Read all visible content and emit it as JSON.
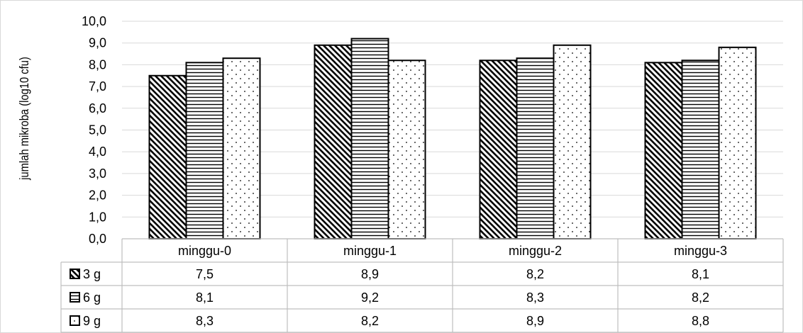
{
  "chart_data": {
    "type": "bar",
    "ylabel": "jumlah mikroba (log10 cfu)",
    "ylim": [
      0,
      10
    ],
    "y_ticks": [
      "0,0",
      "1,0",
      "2,0",
      "3,0",
      "4,0",
      "5,0",
      "6,0",
      "7,0",
      "8,0",
      "9,0",
      "10,0"
    ],
    "grid": true,
    "categories": [
      "minggu-0",
      "minggu-1",
      "minggu-2",
      "minggu-3"
    ],
    "series": [
      {
        "name": "3 g",
        "pattern": "diagonal",
        "values": [
          7.5,
          8.9,
          8.2,
          8.1
        ],
        "labels": [
          "7,5",
          "8,9",
          "8,2",
          "8,1"
        ]
      },
      {
        "name": "6 g",
        "pattern": "horizontal",
        "values": [
          8.1,
          9.2,
          8.3,
          8.2
        ],
        "labels": [
          "8,1",
          "9,2",
          "8,3",
          "8,2"
        ]
      },
      {
        "name": "9 g",
        "pattern": "dots",
        "values": [
          8.3,
          8.2,
          8.9,
          8.8
        ],
        "labels": [
          "8,3",
          "8,2",
          "8,9",
          "8,8"
        ]
      }
    ],
    "legend": "data-table",
    "colors": {
      "bar_stroke": "#000000",
      "grid": "#d9d9d9",
      "table_border": "#bfbfbf",
      "text": "#000000"
    }
  }
}
